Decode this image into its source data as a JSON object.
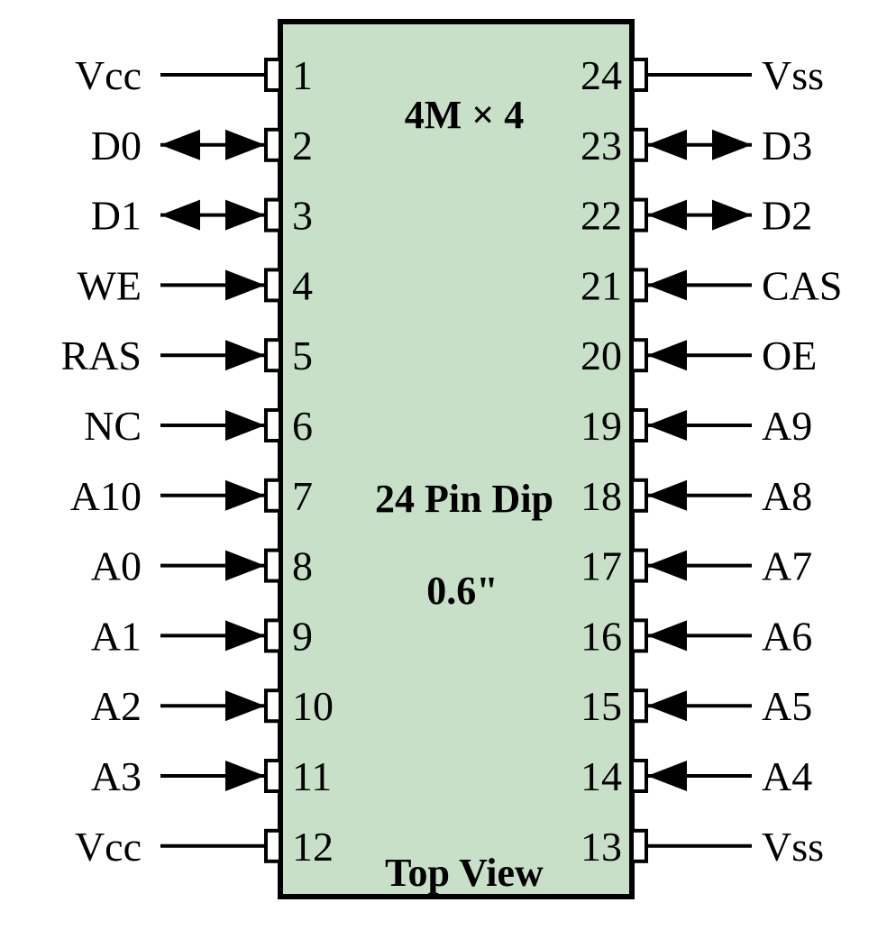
{
  "chip": {
    "title": "4M × 4",
    "package": "24 Pin Dip",
    "width": "0.6\"",
    "view": "Top View",
    "body_color": "#c8dfc8",
    "outline_color": "#000000"
  },
  "pins": {
    "left": [
      {
        "number": "1",
        "name": "Vcc",
        "direction": "none"
      },
      {
        "number": "2",
        "name": "D0",
        "direction": "bidirectional"
      },
      {
        "number": "3",
        "name": "D1",
        "direction": "bidirectional"
      },
      {
        "number": "4",
        "name": "WE",
        "direction": "input"
      },
      {
        "number": "5",
        "name": "RAS",
        "direction": "input"
      },
      {
        "number": "6",
        "name": "NC",
        "direction": "input"
      },
      {
        "number": "7",
        "name": "A10",
        "direction": "input"
      },
      {
        "number": "8",
        "name": "A0",
        "direction": "input"
      },
      {
        "number": "9",
        "name": "A1",
        "direction": "input"
      },
      {
        "number": "10",
        "name": "A2",
        "direction": "input"
      },
      {
        "number": "11",
        "name": "A3",
        "direction": "input"
      },
      {
        "number": "12",
        "name": "Vcc",
        "direction": "none"
      }
    ],
    "right": [
      {
        "number": "24",
        "name": "Vss",
        "direction": "none"
      },
      {
        "number": "23",
        "name": "D3",
        "direction": "bidirectional"
      },
      {
        "number": "22",
        "name": "D2",
        "direction": "bidirectional"
      },
      {
        "number": "21",
        "name": "CAS",
        "direction": "input"
      },
      {
        "number": "20",
        "name": "OE",
        "direction": "input"
      },
      {
        "number": "19",
        "name": "A9",
        "direction": "input"
      },
      {
        "number": "18",
        "name": "A8",
        "direction": "input"
      },
      {
        "number": "17",
        "name": "A7",
        "direction": "input"
      },
      {
        "number": "16",
        "name": "A6",
        "direction": "input"
      },
      {
        "number": "15",
        "name": "A5",
        "direction": "input"
      },
      {
        "number": "14",
        "name": "A4",
        "direction": "input"
      },
      {
        "number": "13",
        "name": "Vss",
        "direction": "none"
      }
    ]
  }
}
